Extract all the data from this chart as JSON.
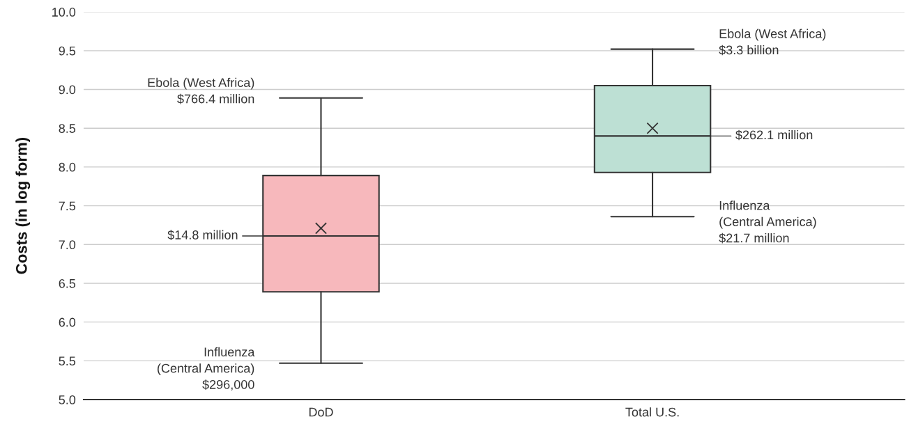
{
  "chart_data": {
    "type": "box",
    "ylabel": "Costs (in log form)",
    "categories": [
      "DoD",
      "Total U.S."
    ],
    "boxes": [
      {
        "low": 5.47,
        "q1": 6.39,
        "median": 7.11,
        "q3": 7.89,
        "high": 8.89,
        "mean": 7.21
      },
      {
        "low": 7.36,
        "q1": 7.93,
        "median": 8.4,
        "q3": 9.05,
        "high": 9.52,
        "mean": 8.5
      }
    ],
    "colors": [
      "#f7b8bc",
      "#bde0d4"
    ],
    "ylim": [
      5.0,
      10.0
    ],
    "yticks": [
      {
        "value": 5.0,
        "label": "5.0"
      },
      {
        "value": 5.5,
        "label": "5.5"
      },
      {
        "value": 6.0,
        "label": "6.0"
      },
      {
        "value": 6.5,
        "label": "6.5"
      },
      {
        "value": 7.0,
        "label": "7.0"
      },
      {
        "value": 7.5,
        "label": "7.5"
      },
      {
        "value": 8.0,
        "label": "8.0"
      },
      {
        "value": 8.5,
        "label": "8.5"
      },
      {
        "value": 9.0,
        "label": "9.0"
      },
      {
        "value": 9.5,
        "label": "9.5"
      },
      {
        "value": 10.0,
        "label": "10.0"
      }
    ],
    "grid": "y",
    "annotations": [
      "Ebola (West Africa)\n$766.4 million",
      {
        "text": "$14.8 million",
        "x": "DoD",
        "y": 7.11
      },
      "Influenza\n(Central America)\n$296,000",
      "Ebola (West Africa)\n$3.3 billion",
      {
        "text": "$262.1 million",
        "x": "Total U.S.",
        "y": 8.4
      },
      "Influenza\n(Central America)\n$21.7 million"
    ]
  }
}
